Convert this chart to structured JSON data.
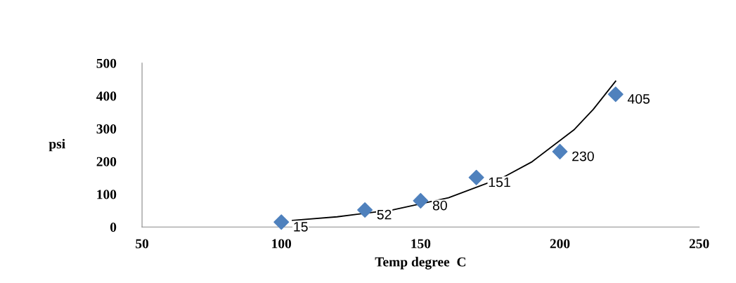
{
  "chart_data": {
    "type": "scatter",
    "xlabel": "Temp degree  C",
    "ylabel": "psi",
    "xlim": [
      50,
      250
    ],
    "xticks": [
      50,
      100,
      150,
      200,
      250
    ],
    "ylim": [
      0,
      500
    ],
    "yticks": [
      0,
      100,
      200,
      300,
      400,
      500
    ],
    "grid": false,
    "legend": false,
    "marker": "diamond",
    "series": [
      {
        "color": "#4f81bd",
        "x": [
          100,
          130,
          150,
          170,
          200,
          220
        ],
        "values": [
          15,
          52,
          80,
          151,
          230,
          405
        ],
        "value_labels": [
          "15",
          "52",
          "80",
          "151",
          "230",
          "405"
        ]
      },
      {
        "type": "line",
        "color": "#000000",
        "line_style": "solid",
        "marker": "none",
        "x": [
          104,
          120,
          140,
          160,
          180,
          190,
          205,
          212,
          220
        ],
        "values": [
          20,
          31,
          52,
          89,
          153,
          199,
          296,
          359,
          445
        ]
      }
    ]
  }
}
